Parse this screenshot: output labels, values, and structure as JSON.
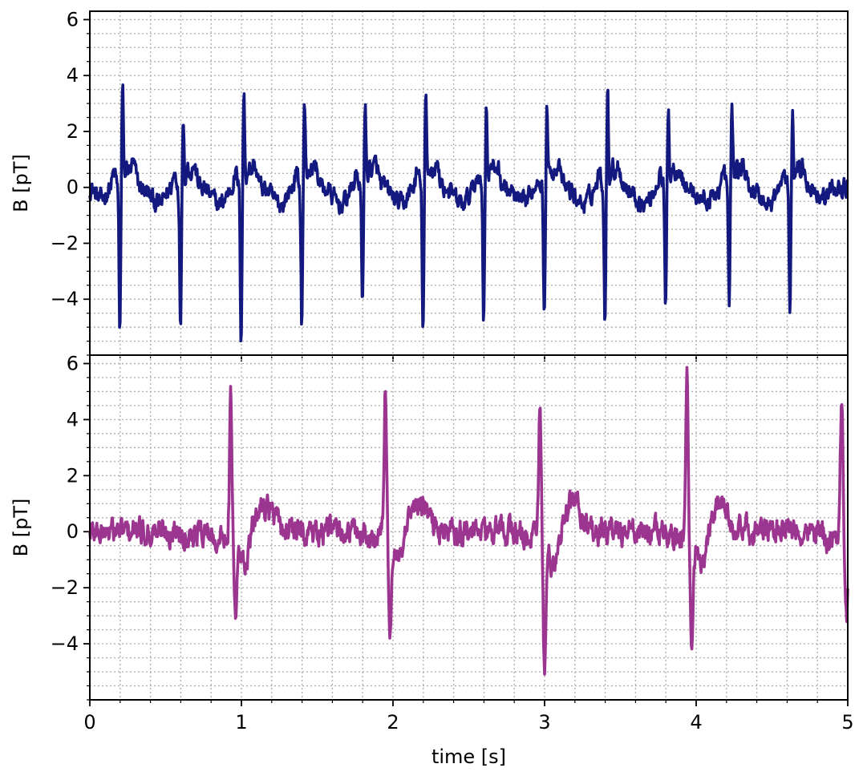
{
  "chart_data": [
    {
      "type": "line",
      "panel": "top",
      "title": "",
      "xlabel": "",
      "ylabel": "B [pT]",
      "xlim": [
        0,
        5
      ],
      "ylim": [
        -6,
        6.3
      ],
      "y_ticks": [
        -4,
        -2,
        0,
        2,
        4,
        6
      ],
      "y_tick_labels": [
        "−4",
        "−2",
        "0",
        "2",
        "4",
        "6"
      ],
      "grid": "minor dotted",
      "color": "#14197f",
      "beat_times": [
        0.2,
        0.6,
        1.0,
        1.4,
        1.8,
        2.2,
        2.6,
        3.0,
        3.4,
        3.8,
        4.22,
        4.62
      ],
      "r_peaks": [
        3.55,
        2.7,
        3.35,
        2.95,
        2.9,
        3.15,
        2.95,
        2.8,
        3.35,
        2.95,
        3.05,
        2.7
      ],
      "s_troughs": [
        -5.1,
        -5.1,
        -5.4,
        -4.9,
        -4.3,
        -5.2,
        -4.7,
        -4.7,
        -4.7,
        -4.55,
        -4.2,
        -4.65
      ],
      "baseline": 0
    },
    {
      "type": "line",
      "panel": "bottom",
      "title": "",
      "xlabel": "time [s]",
      "ylabel": "B [pT]",
      "xlim": [
        0,
        5
      ],
      "ylim": [
        -6,
        6.3
      ],
      "x_ticks": [
        0,
        1,
        2,
        3,
        4,
        5
      ],
      "x_tick_labels": [
        "0",
        "1",
        "2",
        "3",
        "4",
        "5"
      ],
      "y_ticks": [
        -4,
        -2,
        0,
        2,
        4,
        6
      ],
      "y_tick_labels": [
        "−4",
        "−2",
        "0",
        "2",
        "4",
        "6"
      ],
      "grid": "minor dotted",
      "color": "#9b3590",
      "beat_times": [
        0.93,
        1.95,
        2.97,
        3.94,
        4.96
      ],
      "r_peaks": [
        4.8,
        5.3,
        4.7,
        5.85,
        4.95
      ],
      "s_troughs": [
        -2.9,
        -3.1,
        -4.65,
        -3.65,
        -2.95
      ],
      "baseline": 0
    }
  ]
}
